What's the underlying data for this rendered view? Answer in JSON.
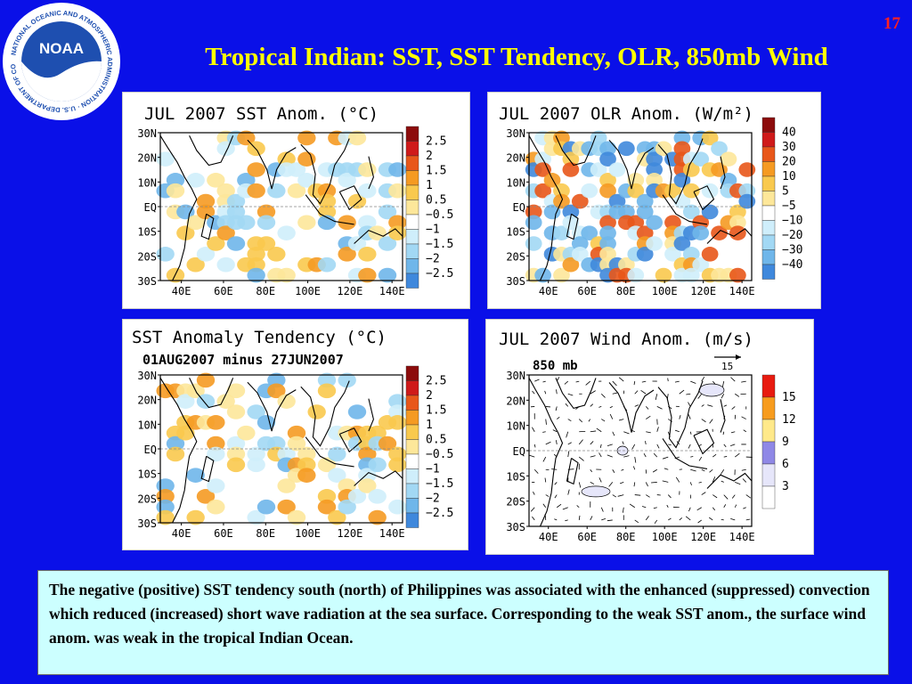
{
  "slide_number": "17",
  "title": "Tropical Indian: SST, SST Tendency, OLR, 850mb Wind",
  "logo": {
    "text": "NOAA",
    "ring_text": "NATIONAL OCEANIC AND ATMOSPHERIC ADMINISTRATION · U.S. DEPARTMENT OF COMMERCE"
  },
  "panels": {
    "sst": {
      "title": "JUL 2007 SST Anom. (°C)",
      "legend": [
        "2.5",
        "2",
        "1.5",
        "1",
        "0.5",
        "−0.5",
        "−1",
        "−1.5",
        "−2",
        "−2.5"
      ]
    },
    "olr": {
      "title": "JUL 2007 OLR Anom. (W/m²)",
      "legend": [
        "40",
        "30",
        "20",
        "10",
        "5",
        "−5",
        "−10",
        "−20",
        "−30",
        "−40"
      ]
    },
    "tendency": {
      "title": "SST Anomaly Tendency (°C)",
      "subtitle": "01AUG2007 minus 27JUN2007",
      "legend": [
        "2.5",
        "2",
        "1.5",
        "1",
        "0.5",
        "−0.5",
        "−1",
        "−1.5",
        "−2",
        "−2.5"
      ]
    },
    "wind": {
      "title": "JUL 2007 Wind Anom. (m/s)",
      "subtitle": "850 mb",
      "ref_vector": "15",
      "legend": [
        "15",
        "12",
        "9",
        "6",
        "3"
      ]
    }
  },
  "lat_labels": [
    "30N",
    "20N",
    "10N",
    "EQ",
    "10S",
    "20S",
    "30S"
  ],
  "lon_labels": [
    "40E",
    "60E",
    "80E",
    "100E",
    "120E",
    "140E"
  ],
  "colors": {
    "warm": [
      "#ffffff",
      "#fde79a",
      "#f9c94e",
      "#f59a22",
      "#e8571a",
      "#cf1a1a",
      "#8c0c0c"
    ],
    "cool": [
      "#ffffff",
      "#cfeefb",
      "#a2d8f4",
      "#6fb6ea",
      "#3f88dc",
      "#1e5fc7"
    ],
    "wind": [
      "#ffffff",
      "#e6e6fa",
      "#8f88e6",
      "#ffe98a",
      "#f79c1e",
      "#e81b10"
    ]
  },
  "caption": "The negative (positive) SST tendency south (north) of Philippines was associated with the enhanced (suppressed) convection which reduced (increased) short wave radiation at the sea surface. Corresponding to the weak SST anom., the surface wind anom. was weak in the tropical Indian Ocean."
}
